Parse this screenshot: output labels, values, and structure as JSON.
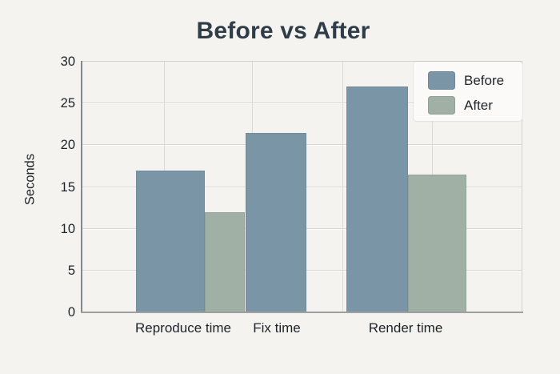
{
  "title": "Before vs After",
  "colors": {
    "background": "#f5f3ef",
    "before": "#7a96a6",
    "after": "#a1b0a5",
    "title_text": "#2e3d47",
    "axis_text": "#1c2329",
    "gridline": "#d9d6d1",
    "legend_background": "#fbfaf8"
  },
  "legend": {
    "items": [
      {
        "label": "Before"
      },
      {
        "label": "After"
      }
    ]
  },
  "chart_data": {
    "type": "bar",
    "title": "Before vs After",
    "xlabel": "",
    "ylabel": "Seconds",
    "ylim": [
      0,
      30
    ],
    "yticks": [
      0,
      5,
      10,
      15,
      20,
      25,
      30
    ],
    "grid": true,
    "legend_position": "top-right-inside",
    "categories": [
      "Reproduce time",
      "Fix time",
      "Render time"
    ],
    "series": [
      {
        "name": "Before",
        "color": "#7a96a6",
        "values": [
          17,
          21.5,
          27
        ]
      },
      {
        "name": "After",
        "color": "#a1b0a5",
        "values": [
          12,
          null,
          16.5
        ]
      }
    ]
  }
}
